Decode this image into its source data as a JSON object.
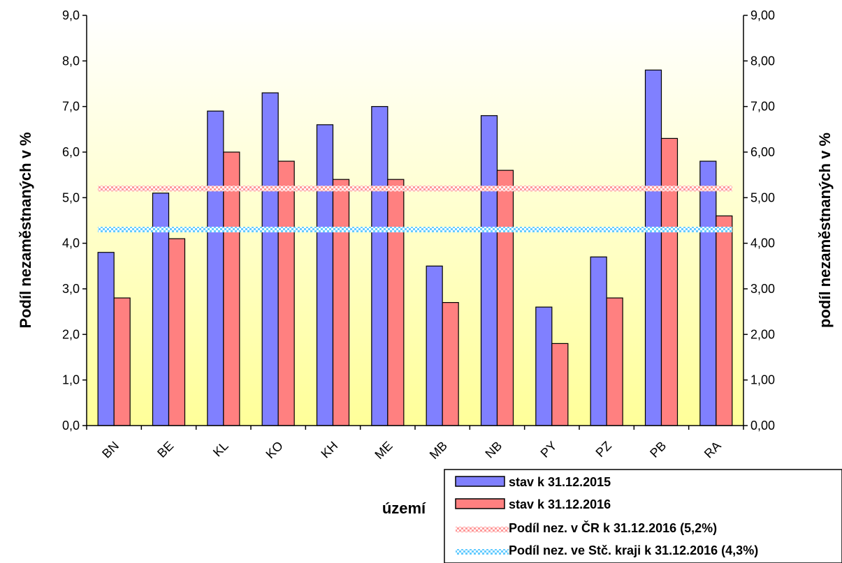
{
  "chart_data": {
    "type": "bar",
    "title": "",
    "categories": [
      "BN",
      "BE",
      "KL",
      "KO",
      "KH",
      "ME",
      "MB",
      "NB",
      "PY",
      "PZ",
      "PB",
      "RA"
    ],
    "series": [
      {
        "name": "stav k 31.12.2015",
        "values": [
          3.8,
          5.1,
          6.9,
          7.3,
          6.6,
          7.0,
          3.5,
          6.8,
          2.6,
          3.7,
          7.8,
          5.8
        ],
        "color": "#8080FF"
      },
      {
        "name": "stav k 31.12.2016",
        "values": [
          2.8,
          4.1,
          6.0,
          5.8,
          5.4,
          5.4,
          2.7,
          5.6,
          1.8,
          2.8,
          6.3,
          4.6
        ],
        "color": "#FF8080"
      }
    ],
    "reference_lines": [
      {
        "name": "Podíl nez. v ČR k 31.12.2016 (5,2%)",
        "value": 5.2,
        "color": "#FF9999"
      },
      {
        "name": "Podíl nez. ve Stč. kraji k 31.12.2016 (4,3%)",
        "value": 4.3,
        "color": "#66CCFF"
      }
    ],
    "xlabel": "území",
    "ylabel": "Podíl nezaměstnaných v %",
    "ylabel_right": "podíl nezaměstnaných v %",
    "ylim": [
      0,
      9
    ],
    "yticks_left": [
      "0,0",
      "1,0",
      "2,0",
      "3,0",
      "4,0",
      "5,0",
      "6,0",
      "7,0",
      "8,0",
      "9,0"
    ],
    "yticks_right": [
      "0,00",
      "1,00",
      "2,00",
      "3,00",
      "4,00",
      "5,00",
      "6,00",
      "7,00",
      "8,00",
      "9,00"
    ],
    "grid": false,
    "legend_position": "bottom-right",
    "background_gradient": [
      "#FFFFFF",
      "#FFFF99"
    ]
  }
}
